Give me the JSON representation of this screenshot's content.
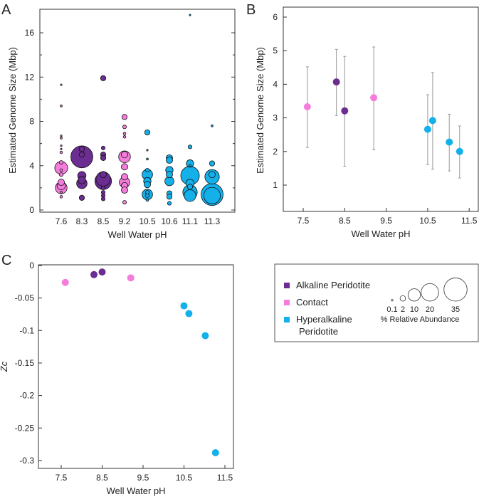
{
  "colors": {
    "alkaline": "#6b2d92",
    "contact": "#f47ddb",
    "hyperalkaline": "#13b0ea",
    "errorbar": "#999999"
  },
  "legend": {
    "groups": [
      {
        "label": "Alkaline Peridotite",
        "key": "alkaline"
      },
      {
        "label": "Contact",
        "key": "contact"
      },
      {
        "label": "Hyperalkaline",
        "label2": "Peridotite",
        "key": "hyperalkaline"
      }
    ],
    "sizes": [
      0.1,
      2,
      10,
      20,
      35
    ],
    "size_labels": [
      "0.1",
      "2",
      "10",
      "20",
      "35"
    ],
    "size_title": "% Relative Abundance"
  },
  "chart_data": [
    {
      "panel": "A",
      "type": "scatter",
      "subtype": "bubble",
      "xlabel": "Well Water pH",
      "ylabel": "Estimated Genome Size (Mbp)",
      "ylim": [
        0,
        18
      ],
      "yticks": [
        "0",
        "4",
        "8",
        "12",
        "16"
      ],
      "categories": [
        "7.6",
        "8.3",
        "8.5",
        "9.2",
        "10.5",
        "10.6",
        "11.1",
        "11.3"
      ],
      "groups": [
        "contact",
        "alkaline",
        "alkaline",
        "contact",
        "hyperalkaline",
        "hyperalkaline",
        "hyperalkaline",
        "hyperalkaline"
      ],
      "bubbles": [
        [
          [
            11.3,
            0.2
          ],
          [
            9.4,
            0.3
          ],
          [
            6.7,
            0.2
          ],
          [
            6.5,
            0.3
          ],
          [
            5.8,
            0.2
          ],
          [
            5.5,
            0.2
          ],
          [
            5.2,
            0.5
          ],
          [
            4.3,
            1
          ],
          [
            3.8,
            12
          ],
          [
            3.6,
            0.5
          ],
          [
            3.2,
            1
          ],
          [
            2.5,
            3
          ],
          [
            2.0,
            10
          ],
          [
            2.2,
            5
          ],
          [
            1.6,
            0.3
          ],
          [
            1.2,
            0.5
          ]
        ],
        [
          [
            4.8,
            35
          ],
          [
            5.5,
            2
          ],
          [
            5.0,
            2
          ],
          [
            3.1,
            5
          ],
          [
            2.4,
            8
          ],
          [
            2.7,
            4
          ],
          [
            1.1,
            2
          ]
        ],
        [
          [
            11.9,
            2
          ],
          [
            5.6,
            1
          ],
          [
            5.0,
            2
          ],
          [
            4.7,
            2
          ],
          [
            2.6,
            20
          ],
          [
            2.8,
            15
          ],
          [
            3.2,
            3
          ],
          [
            2.0,
            1
          ],
          [
            1.6,
            1
          ],
          [
            1.3,
            1
          ],
          [
            1.0,
            1
          ]
        ],
        [
          [
            8.4,
            2
          ],
          [
            7.5,
            1
          ],
          [
            6.9,
            0.5
          ],
          [
            6.6,
            0.5
          ],
          [
            4.8,
            10
          ],
          [
            5.0,
            3
          ],
          [
            3.9,
            3
          ],
          [
            2.5,
            8
          ],
          [
            3.0,
            3
          ],
          [
            2.2,
            3
          ],
          [
            1.8,
            3
          ],
          [
            0.7,
            1
          ]
        ],
        [
          [
            7.0,
            2
          ],
          [
            5.4,
            0.2
          ],
          [
            4.6,
            0.3
          ],
          [
            3.2,
            8
          ],
          [
            3.6,
            1
          ],
          [
            2.6,
            4
          ],
          [
            2.3,
            3
          ],
          [
            1.4,
            8
          ],
          [
            1.6,
            1
          ],
          [
            1.3,
            1
          ],
          [
            0.9,
            0.5
          ]
        ],
        [
          [
            4.7,
            3
          ],
          [
            4.5,
            3
          ],
          [
            3.6,
            4
          ],
          [
            3.2,
            3
          ],
          [
            2.6,
            6
          ],
          [
            1.5,
            2
          ],
          [
            1.2,
            2
          ],
          [
            0.6,
            1
          ]
        ],
        [
          [
            17.6,
            0.1
          ],
          [
            5.7,
            1
          ],
          [
            4.2,
            4
          ],
          [
            4.0,
            0.3
          ],
          [
            3.1,
            25
          ],
          [
            2.4,
            5
          ],
          [
            2.1,
            2
          ],
          [
            1.6,
            15
          ],
          [
            1.3,
            10
          ]
        ],
        [
          [
            7.6,
            0.3
          ],
          [
            4.2,
            2
          ],
          [
            3.0,
            15
          ],
          [
            3.2,
            3
          ],
          [
            1.4,
            35
          ],
          [
            1.3,
            20
          ]
        ]
      ]
    },
    {
      "panel": "B",
      "type": "scatter",
      "xlabel": "Well Water pH",
      "ylabel": "Estimated Genome Size (Mbp)",
      "xlim": [
        7.0,
        11.7
      ],
      "ylim": [
        0.2,
        6.3
      ],
      "xticks": [
        "7.5",
        "8.5",
        "9.5",
        "10.5",
        "11.5"
      ],
      "yticks": [
        "1",
        "2",
        "3",
        "4",
        "5",
        "6"
      ],
      "points": [
        {
          "x": 7.6,
          "y": 3.33,
          "lo": 2.12,
          "hi": 4.52,
          "group": "contact"
        },
        {
          "x": 8.3,
          "y": 4.07,
          "lo": 3.07,
          "hi": 5.04,
          "group": "alkaline"
        },
        {
          "x": 8.5,
          "y": 3.21,
          "lo": 1.56,
          "hi": 4.83,
          "group": "alkaline"
        },
        {
          "x": 9.2,
          "y": 3.6,
          "lo": 2.05,
          "hi": 5.11,
          "group": "contact"
        },
        {
          "x": 10.5,
          "y": 2.66,
          "lo": 1.61,
          "hi": 3.69,
          "group": "hyperalkaline"
        },
        {
          "x": 10.62,
          "y": 2.92,
          "lo": 1.47,
          "hi": 4.35,
          "group": "hyperalkaline"
        },
        {
          "x": 11.02,
          "y": 2.28,
          "lo": 1.42,
          "hi": 3.11,
          "group": "hyperalkaline"
        },
        {
          "x": 11.27,
          "y": 2.0,
          "lo": 1.21,
          "hi": 2.76,
          "group": "hyperalkaline"
        }
      ]
    },
    {
      "panel": "C",
      "type": "scatter",
      "xlabel": "Well Water pH",
      "ylabel": "Zc",
      "xlim": [
        7.0,
        11.7
      ],
      "ylim": [
        -0.31,
        0
      ],
      "xticks": [
        "7.5",
        "8.5",
        "9.5",
        "10.5",
        "11.5"
      ],
      "yticks": [
        "0",
        "-0.05",
        "-0.1",
        "-0.15",
        "-0.2",
        "-0.25",
        "-0.3"
      ],
      "points": [
        {
          "x": 7.6,
          "y": -0.026,
          "group": "contact"
        },
        {
          "x": 8.3,
          "y": -0.014,
          "group": "alkaline"
        },
        {
          "x": 8.5,
          "y": -0.01,
          "group": "alkaline"
        },
        {
          "x": 9.2,
          "y": -0.019,
          "group": "contact"
        },
        {
          "x": 10.5,
          "y": -0.062,
          "group": "hyperalkaline"
        },
        {
          "x": 10.62,
          "y": -0.074,
          "group": "hyperalkaline"
        },
        {
          "x": 11.02,
          "y": -0.108,
          "group": "hyperalkaline"
        },
        {
          "x": 11.27,
          "y": -0.288,
          "group": "hyperalkaline"
        }
      ]
    }
  ]
}
